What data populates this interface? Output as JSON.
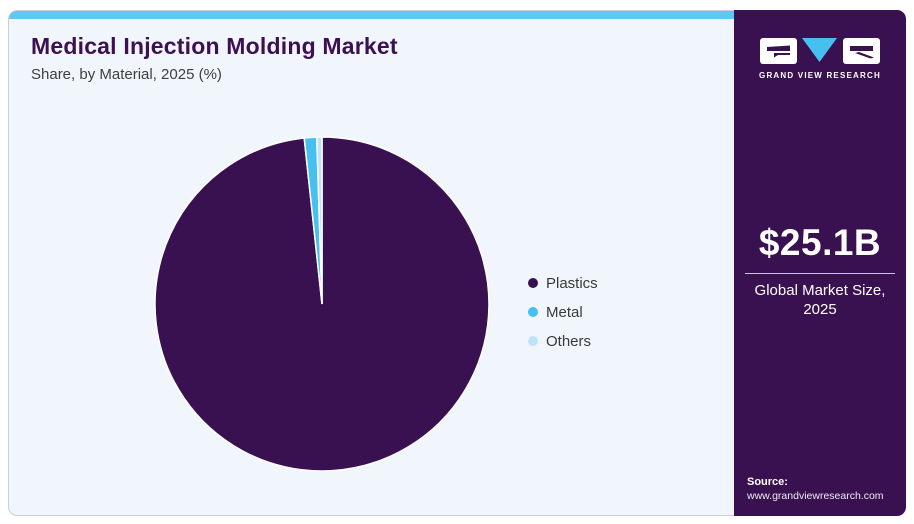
{
  "page": {
    "title": "Medical Injection Molding Market",
    "subtitle": "Share, by Material, 2025 (%)"
  },
  "chart_data": {
    "type": "pie",
    "title": "Medical Injection Molding Market Share, by Material, 2025 (%)",
    "categories": [
      "Plastics",
      "Metal",
      "Others"
    ],
    "values": [
      98.3,
      1.2,
      0.5
    ],
    "unit": "%",
    "colors": [
      "#3A1150",
      "#45C0F0",
      "#BDE3F8"
    ],
    "legend_position": "right",
    "start_angle_deg": 0,
    "direction": "clockwise",
    "slice_border_color": "#FFFFFF"
  },
  "sidebar": {
    "logo_text": "GRAND VIEW RESEARCH",
    "market_size_value": "$25.1B",
    "market_size_label_line1": "Global Market Size,",
    "market_size_label_line2": "2025",
    "source_label": "Source:",
    "source_url": "www.grandviewresearch.com"
  },
  "colors": {
    "accent_strip": "#5EC8F0",
    "sidebar_bg": "#3A1150",
    "card_bg": "#F0F6FB",
    "title_text": "#3C1053",
    "logo_triangle": "#45C0F0"
  }
}
